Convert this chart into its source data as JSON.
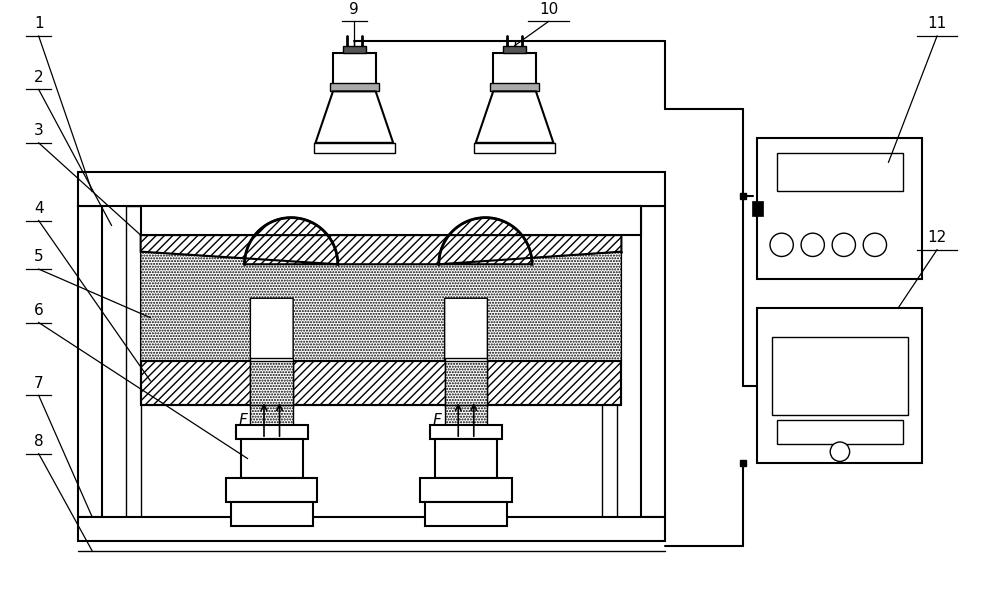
{
  "bg_color": "#ffffff",
  "lc": "#000000",
  "lw_main": 1.5,
  "lw_thin": 1.0
}
